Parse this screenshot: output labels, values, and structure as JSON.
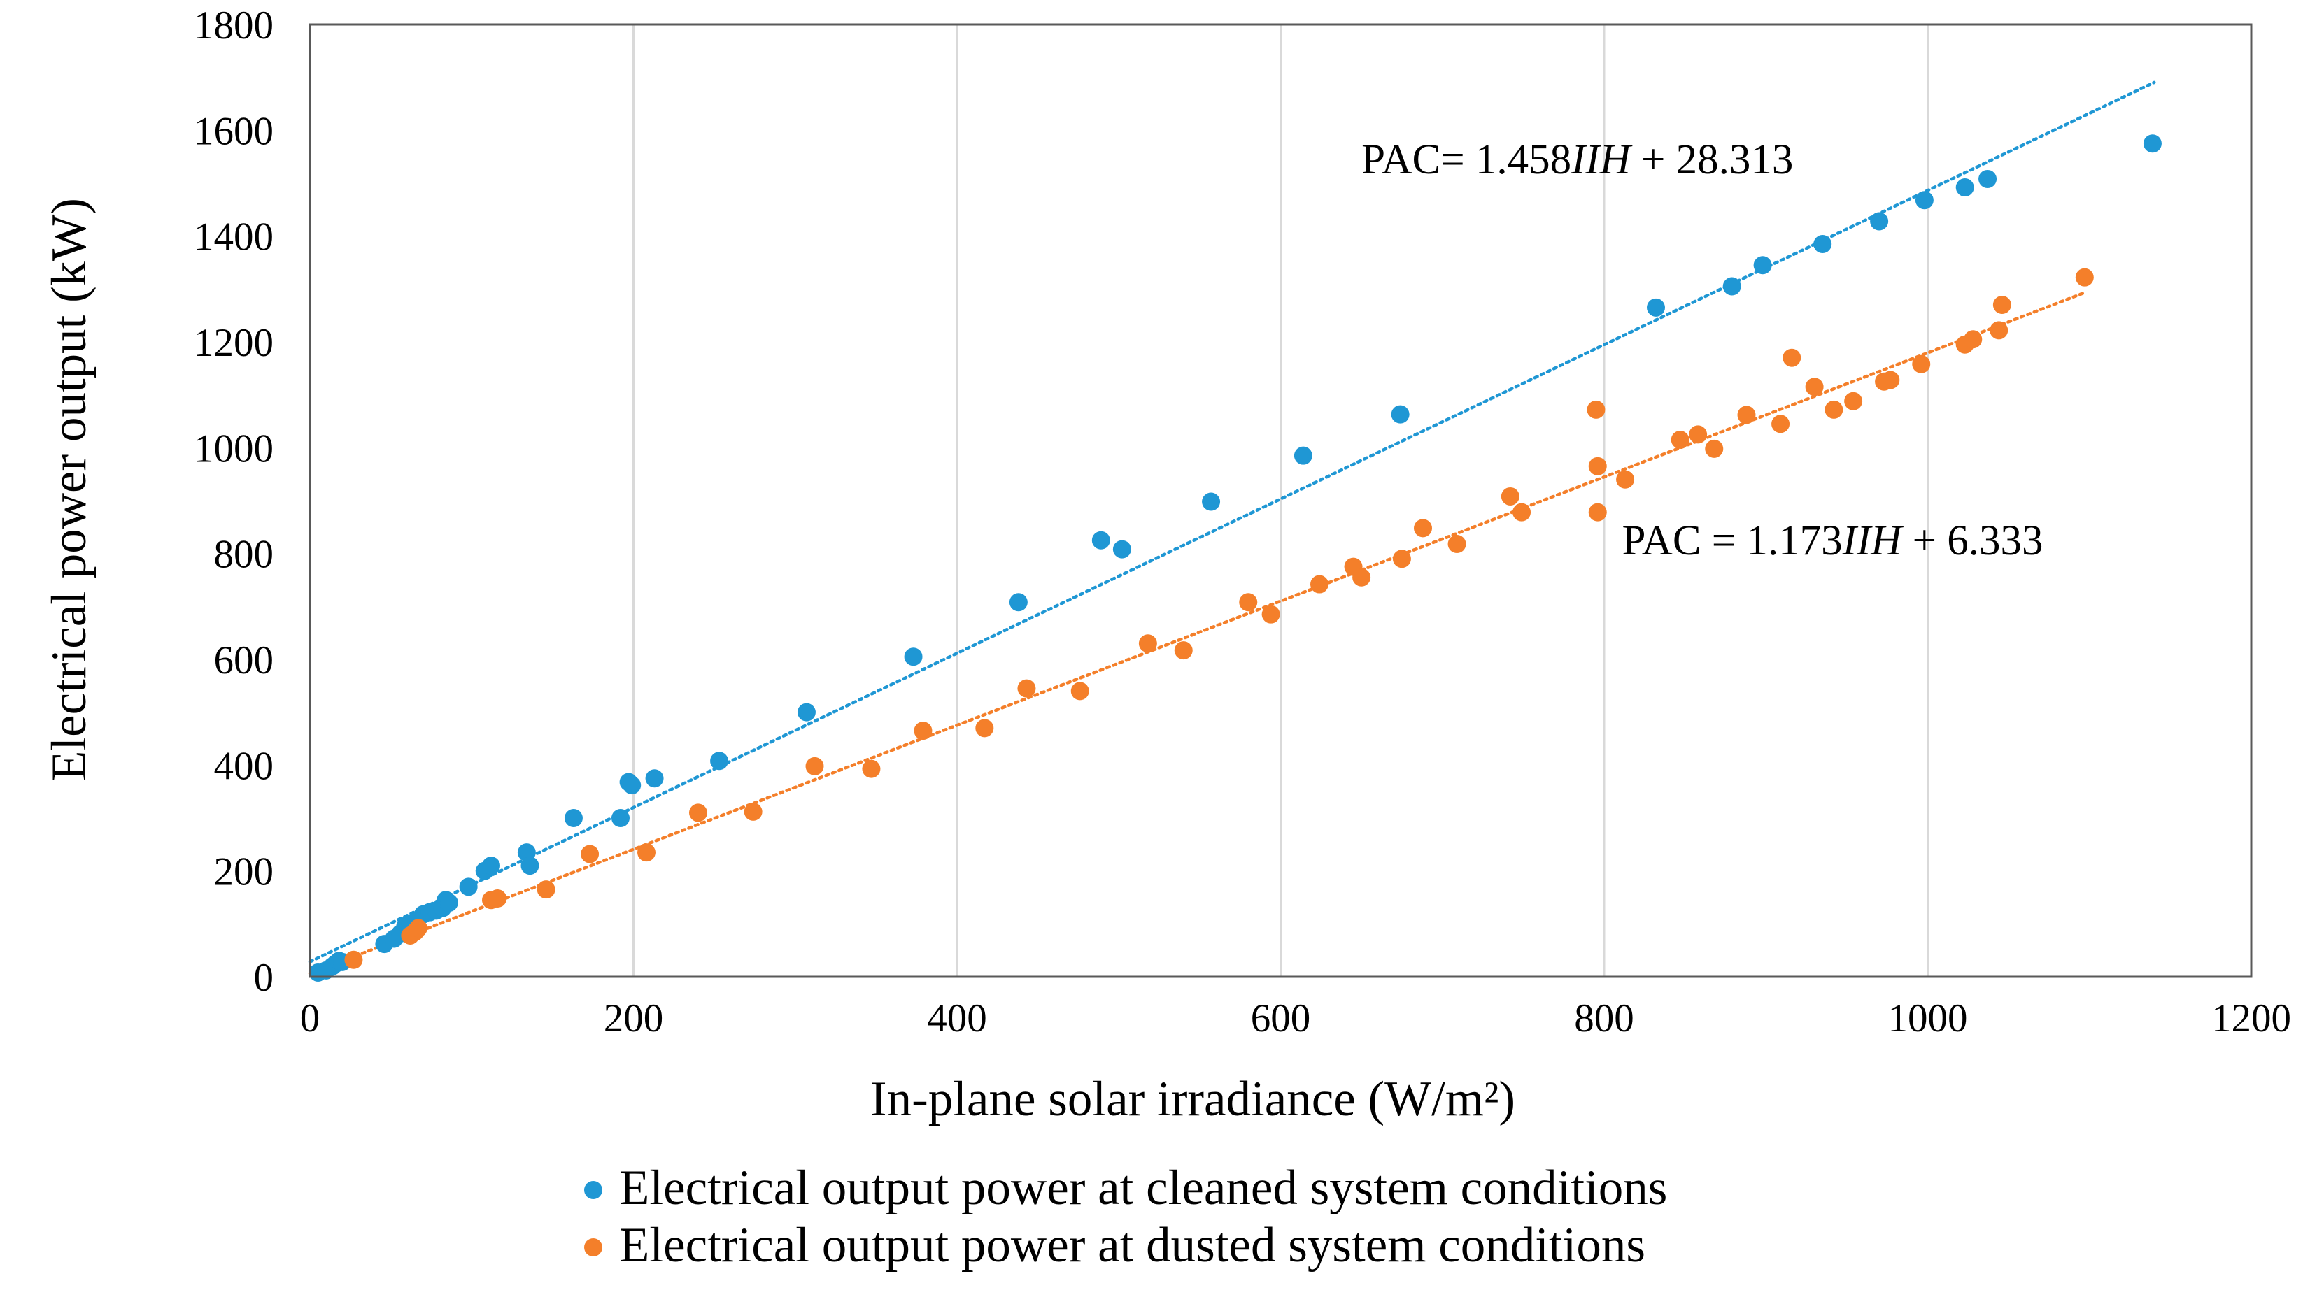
{
  "chart_data": {
    "type": "scatter",
    "xlabel": "In-plane solar irradiance (W/m²)",
    "ylabel": "Electrical power output (kW)",
    "xlim": [
      0,
      1200
    ],
    "ylim": [
      0,
      1800
    ],
    "x_ticks": [
      0,
      200,
      400,
      600,
      800,
      1000,
      1200
    ],
    "y_ticks": [
      0,
      200,
      400,
      600,
      800,
      1000,
      1200,
      1400,
      1600,
      1800
    ],
    "grid": "vertical",
    "legend_placement": "bottom",
    "series": [
      {
        "name": "Electrical output power at cleaned system conditions",
        "color": "#1f97d4",
        "points": [
          [
            5,
            8
          ],
          [
            10,
            12
          ],
          [
            14,
            20
          ],
          [
            16,
            25
          ],
          [
            18,
            30
          ],
          [
            20,
            28
          ],
          [
            46,
            62
          ],
          [
            52,
            72
          ],
          [
            56,
            82
          ],
          [
            59,
            96
          ],
          [
            62,
            100
          ],
          [
            66,
            105
          ],
          [
            70,
            118
          ],
          [
            74,
            122
          ],
          [
            78,
            125
          ],
          [
            82,
            130
          ],
          [
            84,
            145
          ],
          [
            86,
            140
          ],
          [
            98,
            170
          ],
          [
            108,
            200
          ],
          [
            112,
            210
          ],
          [
            134,
            235
          ],
          [
            136,
            210
          ],
          [
            163,
            300
          ],
          [
            192,
            300
          ],
          [
            197,
            368
          ],
          [
            199,
            362
          ],
          [
            213,
            375
          ],
          [
            253,
            408
          ],
          [
            307,
            500
          ],
          [
            373,
            605
          ],
          [
            438,
            708
          ],
          [
            489,
            825
          ],
          [
            502,
            808
          ],
          [
            557,
            898
          ],
          [
            614,
            985
          ],
          [
            674,
            1063
          ],
          [
            832,
            1265
          ],
          [
            879,
            1305
          ],
          [
            898,
            1345
          ],
          [
            935,
            1385
          ],
          [
            970,
            1428
          ],
          [
            998,
            1468
          ],
          [
            1023,
            1492
          ],
          [
            1037,
            1508
          ],
          [
            1139,
            1575
          ]
        ],
        "trendline": {
          "slope": 1.458,
          "intercept": 28.313,
          "x_range": [
            0,
            1140
          ]
        }
      },
      {
        "name": "Electrical output power at dusted system conditions",
        "color": "#f47f2a",
        "points": [
          [
            27,
            32
          ],
          [
            62,
            78
          ],
          [
            65,
            85
          ],
          [
            67,
            92
          ],
          [
            112,
            145
          ],
          [
            116,
            148
          ],
          [
            146,
            165
          ],
          [
            173,
            232
          ],
          [
            208,
            235
          ],
          [
            240,
            310
          ],
          [
            274,
            312
          ],
          [
            312,
            398
          ],
          [
            347,
            393
          ],
          [
            379,
            465
          ],
          [
            417,
            470
          ],
          [
            443,
            545
          ],
          [
            476,
            540
          ],
          [
            518,
            630
          ],
          [
            540,
            617
          ],
          [
            580,
            708
          ],
          [
            594,
            685
          ],
          [
            624,
            742
          ],
          [
            645,
            775
          ],
          [
            650,
            755
          ],
          [
            675,
            790
          ],
          [
            688,
            848
          ],
          [
            709,
            818
          ],
          [
            742,
            908
          ],
          [
            749,
            878
          ],
          [
            795,
            1072
          ],
          [
            796,
            965
          ],
          [
            796,
            878
          ],
          [
            813,
            940
          ],
          [
            847,
            1015
          ],
          [
            858,
            1025
          ],
          [
            868,
            998
          ],
          [
            888,
            1062
          ],
          [
            909,
            1045
          ],
          [
            916,
            1170
          ],
          [
            930,
            1115
          ],
          [
            942,
            1072
          ],
          [
            954,
            1088
          ],
          [
            973,
            1125
          ],
          [
            977,
            1128
          ],
          [
            996,
            1158
          ],
          [
            1023,
            1195
          ],
          [
            1028,
            1205
          ],
          [
            1044,
            1222
          ],
          [
            1046,
            1270
          ],
          [
            1097,
            1322
          ]
        ],
        "trendline": {
          "slope": 1.173,
          "intercept": 6.333,
          "x_range": [
            0,
            1097
          ]
        }
      }
    ],
    "annotations": [
      {
        "text": "PAC= 1.458",
        "italic": "IIH",
        "rest": " + 28.313",
        "at": [
          650,
          1545
        ]
      },
      {
        "text": "PAC = 1.173",
        "italic": "IIH",
        "rest": " + 6.333",
        "at": [
          811,
          825
        ]
      }
    ]
  }
}
